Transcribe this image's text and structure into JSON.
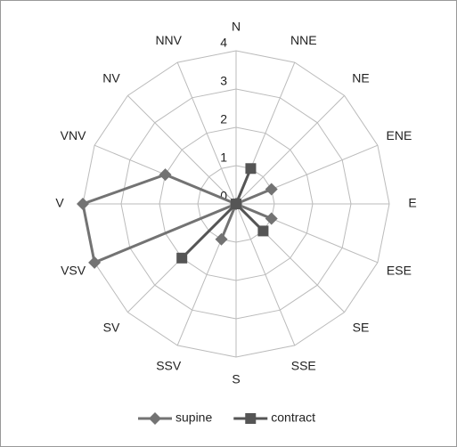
{
  "chart_data": {
    "type": "radar",
    "categories": [
      "N",
      "NNE",
      "NE",
      "ENE",
      "E",
      "ESE",
      "SE",
      "SSE",
      "S",
      "SSV",
      "SV",
      "VSV",
      "V",
      "VNV",
      "NV",
      "NNV"
    ],
    "ylim": [
      0,
      4
    ],
    "yticks": [
      0,
      1,
      2,
      3,
      4
    ],
    "grid": true,
    "legend": "bottom",
    "series": [
      {
        "name": "supine",
        "color": "#737373",
        "marker": "diamond",
        "values": [
          0,
          0,
          0,
          1,
          0,
          1,
          0,
          0,
          0,
          1,
          0,
          4,
          4,
          2,
          0,
          0
        ]
      },
      {
        "name": "contract",
        "color": "#555555",
        "marker": "square",
        "values": [
          0,
          1,
          0,
          0,
          0,
          0,
          1,
          0,
          0,
          0,
          2,
          0,
          0,
          0,
          0,
          0
        ]
      }
    ]
  }
}
